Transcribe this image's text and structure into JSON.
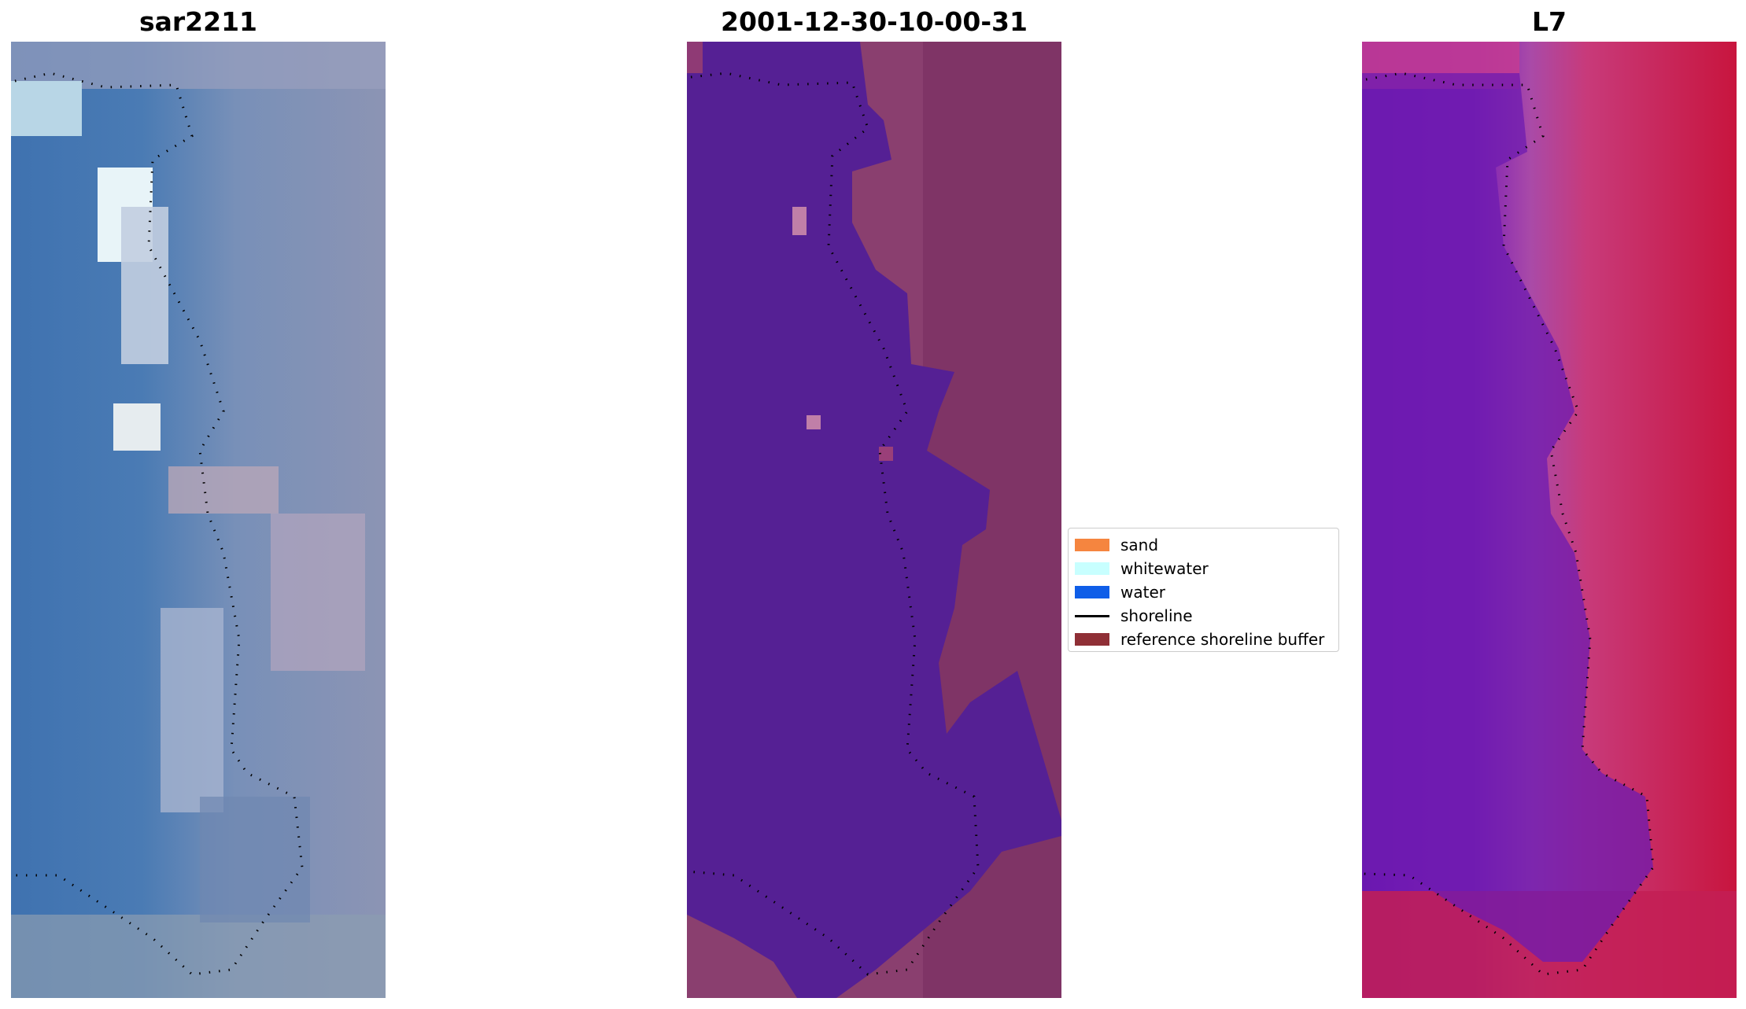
{
  "panels": [
    {
      "title": "sar2211"
    },
    {
      "title": "2001-12-30-10-00-31"
    },
    {
      "title": "L7"
    }
  ],
  "legend": {
    "items": [
      {
        "label": "sand",
        "color": "#f5853f",
        "kind": "patch"
      },
      {
        "label": "whitewater",
        "color": "#c8ffff",
        "kind": "patch"
      },
      {
        "label": "water",
        "color": "#0f5ee8",
        "kind": "patch"
      },
      {
        "label": "shoreline",
        "color": "#000000",
        "kind": "line"
      },
      {
        "label": "reference shoreline buffer",
        "color": "#8f2f36",
        "kind": "patch"
      }
    ]
  }
}
